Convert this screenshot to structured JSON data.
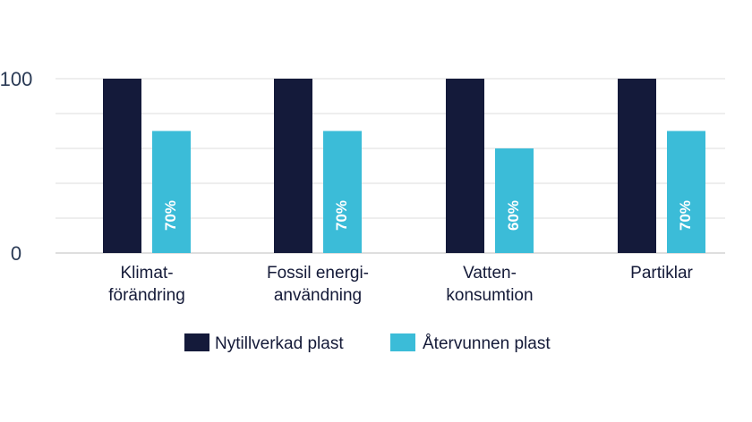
{
  "colors": {
    "series_1": "#141a3a",
    "series_2": "#3bbcd8",
    "grid": "#dcdcdc",
    "axis": "#bdbdbd"
  },
  "chart_data": {
    "type": "bar",
    "categories": [
      [
        "Klimat-",
        "förändring"
      ],
      [
        "Fossil energi-",
        "användning"
      ],
      [
        "Vatten-",
        "konsumtion"
      ],
      [
        "Partiklar"
      ]
    ],
    "series": [
      {
        "name": "Nytillverkad plast",
        "values": [
          100,
          100,
          100,
          100
        ],
        "data_labels": [
          "",
          "",
          "",
          ""
        ]
      },
      {
        "name": "Återvunnen plast",
        "values": [
          70,
          70,
          60,
          70
        ],
        "data_labels": [
          "70%",
          "70%",
          "60%",
          "70%"
        ]
      }
    ],
    "ylim": [
      0,
      100
    ],
    "y_tick_labels": [
      {
        "value": 0,
        "label": "0"
      },
      {
        "value": 100,
        "label": "100"
      }
    ],
    "gridlines": [
      0,
      20,
      40,
      60,
      80,
      100
    ],
    "grid": true,
    "legend_position": "bottom",
    "title": "",
    "xlabel": "",
    "ylabel": ""
  }
}
